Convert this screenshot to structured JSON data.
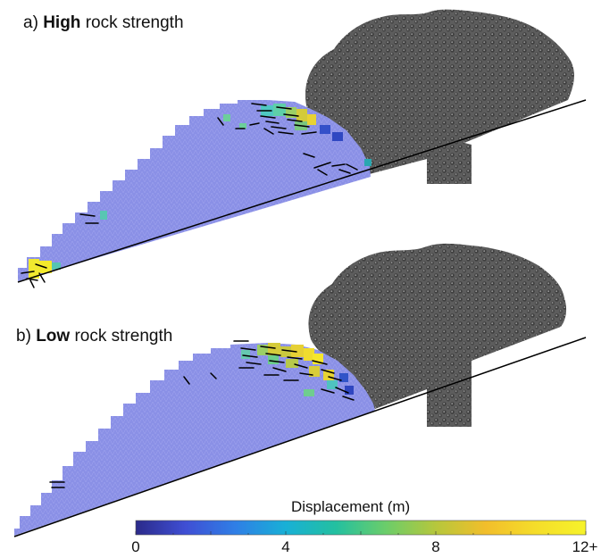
{
  "panels": [
    {
      "prefix": "a)",
      "emphasis": "High",
      "suffix": "rock strength"
    },
    {
      "prefix": "b)",
      "emphasis": "Low",
      "suffix": "rock strength"
    }
  ],
  "colorbar": {
    "title": "Displacement (m)",
    "ticks": [
      "0",
      "4",
      "8",
      "12+"
    ],
    "range": [
      0,
      12
    ],
    "tick_values": [
      0,
      4,
      8,
      12
    ],
    "colors": [
      "#2b2a8a",
      "#3f4fd4",
      "#2f7fe6",
      "#18b0d6",
      "#23c0a0",
      "#6bcd6a",
      "#b6c73c",
      "#f2be2b",
      "#f5dd2a",
      "#f6f32a"
    ]
  },
  "colors": {
    "rock_mass": "#8a90e6",
    "particles": "#5a5a5a",
    "slope_line": "#000000"
  }
}
